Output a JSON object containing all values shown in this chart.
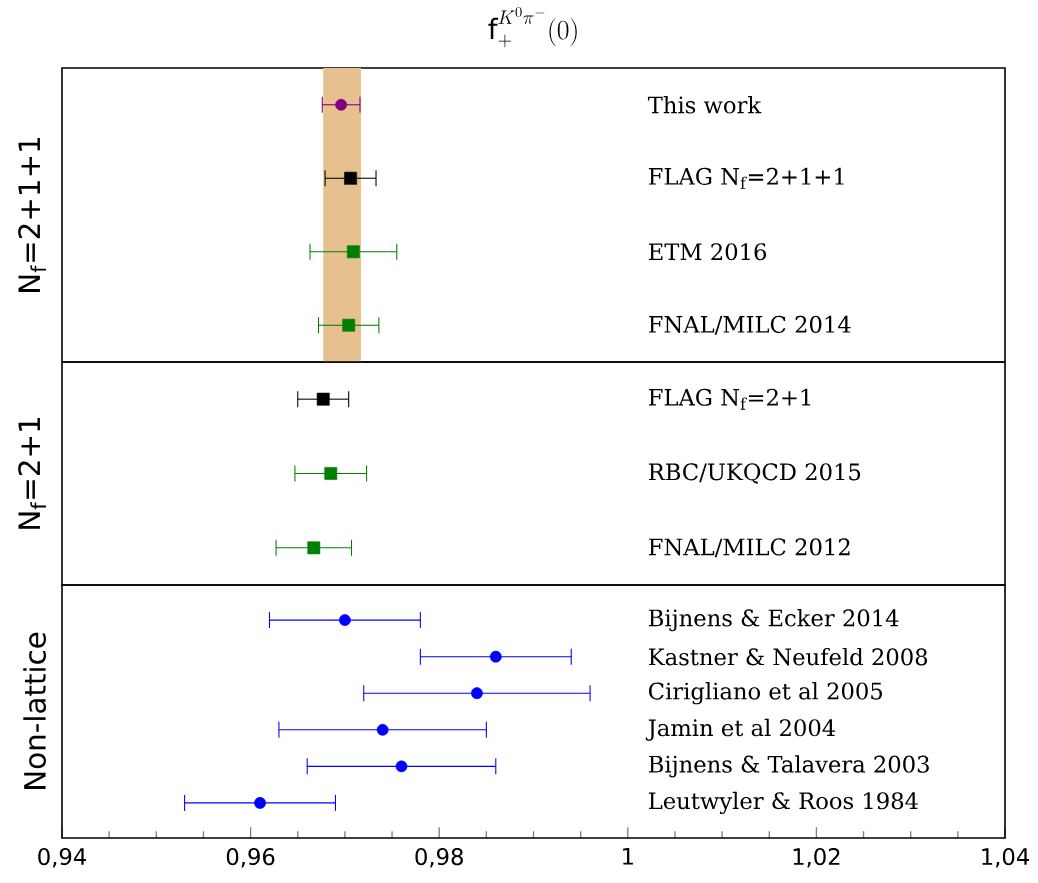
{
  "chart_data": [
    {
      "type": "scatter",
      "title": "\\mathrm{f}_+^{K^0\\pi^-}(0)",
      "ylabel": "N$_{f}$=2+1+1",
      "orientation": "horizontal",
      "categories": [
        "This work",
        "FLAG N$_{f}$=2+1+1",
        "ETM 2016",
        "FNAL/MILC 2014"
      ],
      "xlim": [
        0.94,
        1.04
      ],
      "tick_labels": "y",
      "bands": [
        {
          "axis": "x",
          "from": 0.9677,
          "to": 0.9717,
          "color": "#e6c08f"
        }
      ],
      "series": [
        {
          "color": "#800080",
          "marker": "circle",
          "values": [
            0.9696,
            null,
            null,
            null
          ],
          "errors": [
            0.002,
            null,
            null,
            null
          ]
        },
        {
          "color": "#000000",
          "marker": "square",
          "values": [
            null,
            0.9706,
            null,
            null
          ],
          "errors": [
            null,
            0.0027,
            null,
            null
          ]
        },
        {
          "color": "#008000",
          "marker": "square",
          "values": [
            null,
            null,
            0.9709,
            0.9704
          ],
          "errors": [
            null,
            null,
            0.0046,
            0.0032
          ]
        }
      ]
    },
    {
      "type": "scatter",
      "ylabel": "N$_{f}$=2+1",
      "orientation": "horizontal",
      "categories": [
        "FLAG N$_{f}$=2+1",
        "RBC/UKQCD 2015",
        "FNAL/MILC 2012"
      ],
      "xlim": [
        0.94,
        1.04
      ],
      "tick_labels": "y",
      "series": [
        {
          "color": "#000000",
          "marker": "square",
          "values": [
            0.9677,
            null,
            null
          ],
          "errors": [
            0.0027,
            null,
            null
          ]
        },
        {
          "color": "#008000",
          "marker": "square",
          "values": [
            null,
            0.9685,
            0.9667
          ],
          "errors": [
            null,
            0.0038,
            0.004
          ]
        }
      ]
    },
    {
      "type": "scatter",
      "ylabel": "Non-lattice",
      "orientation": "horizontal",
      "categories": [
        "Bijnens & Ecker 2014",
        "Kastner & Neufeld 2008",
        "Cirigliano et al 2005",
        "Jamin et al 2004",
        "Bijnens & Talavera 2003",
        "Leutwyler & Roos 1984"
      ],
      "xlim": [
        0.94,
        1.04
      ],
      "xticks": [
        {
          "value": 0.94,
          "label": "0,94"
        },
        {
          "value": 0.96,
          "label": "0,96"
        },
        {
          "value": 0.98,
          "label": "0,98"
        },
        {
          "value": 1,
          "label": "1"
        },
        {
          "value": 1.02,
          "label": "1,02"
        },
        {
          "value": 1.04,
          "label": "1,04"
        }
      ],
      "series": [
        {
          "color": "#0000ff",
          "marker": "circle",
          "values": [
            0.97,
            0.986,
            0.984,
            0.974,
            0.976,
            0.961
          ],
          "errors": [
            0.008,
            0.008,
            0.012,
            0.011,
            0.01,
            0.008
          ]
        }
      ]
    }
  ]
}
